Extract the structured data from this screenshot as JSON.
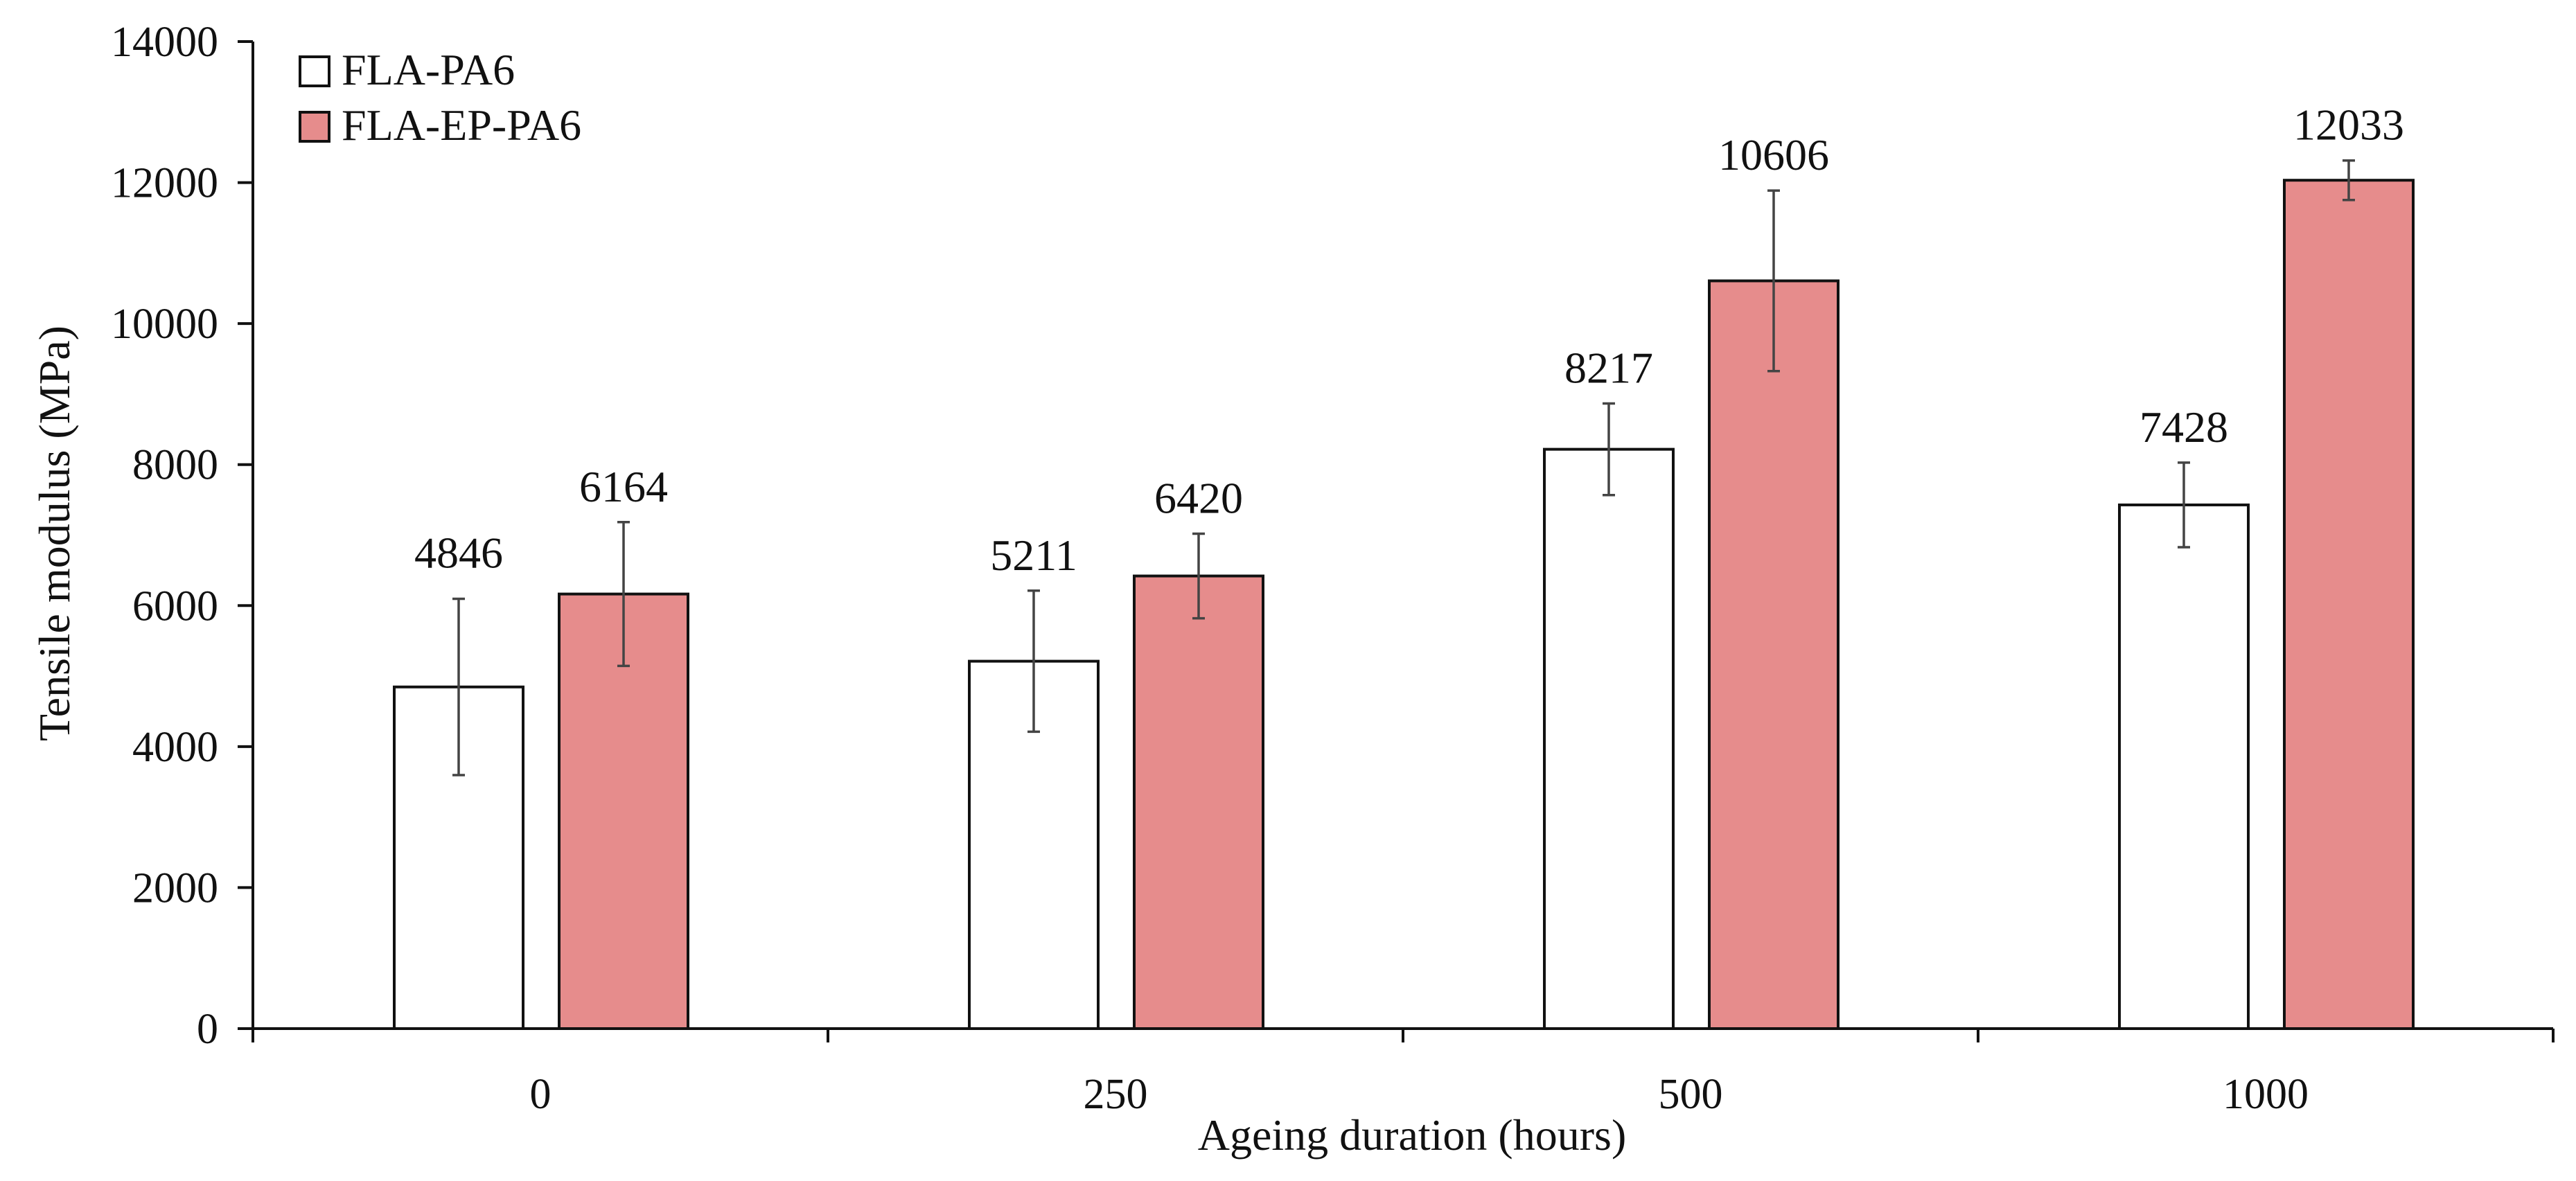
{
  "chart_data": {
    "type": "bar",
    "title": "",
    "xlabel": "Ageing duration (hours)",
    "ylabel": "Tensile modulus (MPa)",
    "categories": [
      "0",
      "250",
      "500",
      "1000"
    ],
    "ylim": [
      0,
      14000
    ],
    "y_ticks": [
      "0",
      "2000",
      "4000",
      "6000",
      "8000",
      "10000",
      "12000",
      "14000"
    ],
    "grid": false,
    "legend_position": "top-left",
    "series": [
      {
        "name": "FLA-PA6",
        "color": "#ffffff",
        "values": [
          4846,
          5211,
          8217,
          7428
        ],
        "value_labels": [
          "4846",
          "5211",
          "8217",
          "7428"
        ],
        "error": [
          1250,
          1000,
          650,
          600
        ]
      },
      {
        "name": "FLA-EP-PA6",
        "color": "#e68c8c",
        "values": [
          6164,
          6420,
          10606,
          12033
        ],
        "value_labels": [
          "6164",
          "6420",
          "10606",
          "12033"
        ],
        "error": [
          1020,
          600,
          1280,
          280
        ]
      }
    ]
  }
}
